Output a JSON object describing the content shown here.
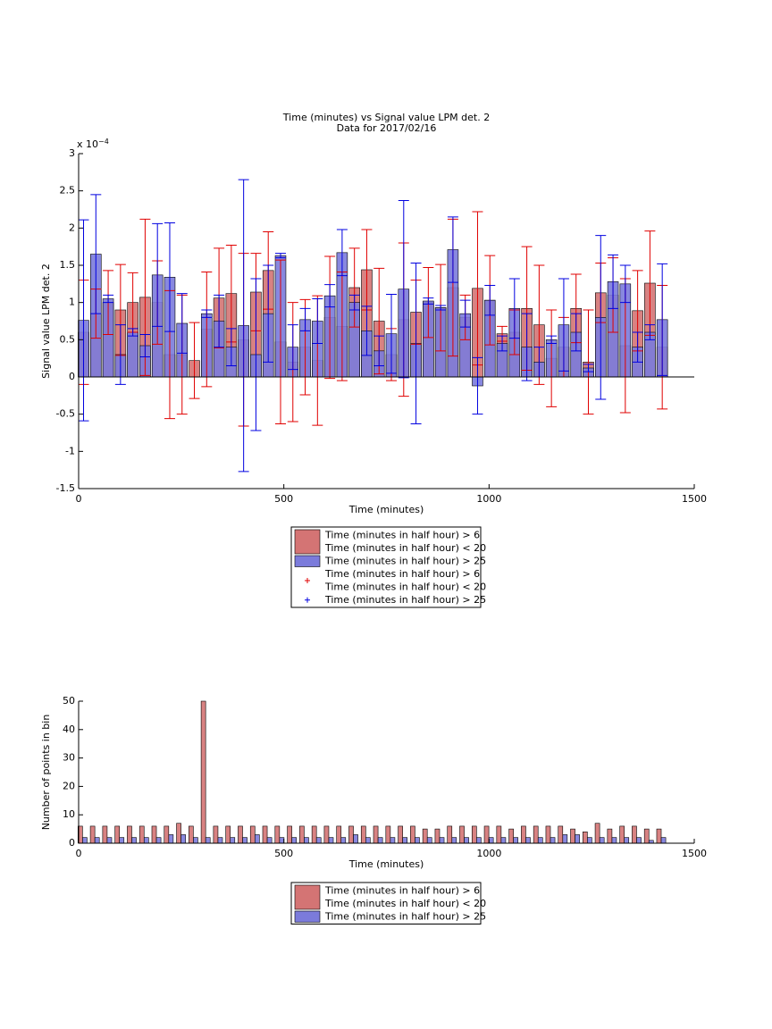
{
  "chart_data": [
    {
      "type": "bar",
      "title": [
        "Time (minutes) vs Signal value LPM det. 2",
        "Data for 2017/02/16"
      ],
      "xlabel": "Time (minutes)",
      "ylabel": "Signal value LPM det. 2",
      "y_offset_base": "x 10",
      "y_offset_exponent": "−4",
      "xlim": [
        0,
        1500
      ],
      "xticks": [
        0,
        500,
        1000,
        1500
      ],
      "ylim": [
        -1.5,
        3
      ],
      "yticks": [
        -1.5,
        -1,
        -0.5,
        0,
        0.5,
        1,
        1.5,
        2,
        2.5,
        3
      ],
      "zero_line": true,
      "errorbar_legend": true,
      "bar_width": 26,
      "series": [
        {
          "name": [
            "Time (minutes in half hour) > 6",
            "Time (minutes in half hour) < 20"
          ],
          "color": "#d47474",
          "error_color": "#e00000",
          "x": [
            12,
            42,
            72,
            102,
            132,
            162,
            192,
            222,
            252,
            282,
            312,
            342,
            372,
            402,
            432,
            462,
            492,
            522,
            552,
            582,
            612,
            642,
            672,
            702,
            732,
            762,
            792,
            822,
            852,
            882,
            912,
            942,
            972,
            1002,
            1032,
            1062,
            1092,
            1122,
            1152,
            1182,
            1212,
            1242,
            1272,
            1302,
            1332,
            1362,
            1392,
            1422
          ],
          "values": [
            0.6,
            0.85,
            1.0,
            0.9,
            1.0,
            1.07,
            1.0,
            0.3,
            0.3,
            0.22,
            0.64,
            1.06,
            1.12,
            0.5,
            1.14,
            1.43,
            0.47,
            0.2,
            0.4,
            0.22,
            0.8,
            0.68,
            1.2,
            1.44,
            0.75,
            0.3,
            0.77,
            0.87,
            1.0,
            0.93,
            1.2,
            0.8,
            1.19,
            1.03,
            0.58,
            0.6,
            0.92,
            0.7,
            0.25,
            0.4,
            0.92,
            0.2,
            1.13,
            1.1,
            0.42,
            0.89,
            1.26,
            0.4
          ],
          "errors": [
            0.7,
            0.33,
            0.43,
            0.61,
            0.4,
            1.05,
            0.56,
            0.86,
            0.8,
            0.51,
            0.77,
            0.67,
            0.65,
            1.16,
            0.52,
            0.52,
            1.1,
            0.8,
            0.64,
            0.87,
            0.82,
            0.73,
            0.53,
            0.54,
            0.71,
            0.35,
            1.03,
            0.43,
            0.47,
            0.58,
            0.92,
            0.3,
            1.03,
            0.6,
            0.1,
            0.3,
            0.83,
            0.8,
            0.65,
            0.4,
            0.46,
            0.7,
            0.4,
            0.5,
            0.9,
            0.54,
            0.7,
            0.83
          ]
        },
        {
          "name": [
            "Time (minutes in half hour) > 25"
          ],
          "color": "#7b7bdb",
          "error_color": "#0000e0",
          "x": [
            12,
            42,
            72,
            102,
            132,
            162,
            192,
            222,
            252,
            282,
            312,
            342,
            372,
            402,
            432,
            462,
            492,
            522,
            552,
            582,
            612,
            642,
            672,
            702,
            732,
            762,
            792,
            822,
            852,
            882,
            912,
            942,
            972,
            1002,
            1032,
            1062,
            1092,
            1122,
            1152,
            1182,
            1212,
            1242,
            1272,
            1302,
            1332,
            1362,
            1392,
            1422
          ],
          "values": [
            0.76,
            1.65,
            1.05,
            0.3,
            0.6,
            0.42,
            1.37,
            1.34,
            0.72,
            null,
            0.85,
            0.75,
            0.4,
            0.69,
            0.3,
            0.85,
            1.63,
            0.4,
            0.77,
            0.75,
            1.09,
            1.67,
            1.0,
            0.62,
            0.35,
            0.58,
            1.18,
            0.45,
            1.02,
            0.93,
            1.71,
            0.85,
            -0.12,
            1.03,
            0.45,
            0.92,
            0.4,
            0.2,
            0.5,
            0.7,
            0.6,
            0.12,
            0.8,
            1.28,
            1.25,
            0.4,
            0.6,
            0.77
          ],
          "errors": [
            1.35,
            0.8,
            0.05,
            0.4,
            0.05,
            0.15,
            0.69,
            0.73,
            0.4,
            null,
            0.05,
            0.35,
            0.25,
            1.96,
            1.02,
            0.65,
            0.03,
            0.3,
            0.15,
            0.3,
            0.15,
            0.31,
            0.1,
            0.33,
            0.2,
            0.53,
            1.19,
            1.08,
            0.04,
            0.03,
            0.44,
            0.18,
            0.38,
            0.2,
            0.1,
            0.4,
            0.45,
            0.2,
            0.05,
            0.62,
            0.25,
            0.05,
            1.1,
            0.36,
            0.25,
            0.2,
            0.1,
            0.75
          ]
        }
      ]
    },
    {
      "type": "bar",
      "xlabel": "Time (minutes)",
      "ylabel": "Number of points in bin",
      "xlim": [
        0,
        1500
      ],
      "xticks": [
        0,
        500,
        1000,
        1500
      ],
      "ylim": [
        0,
        50
      ],
      "yticks": [
        0,
        10,
        20,
        30,
        40,
        50
      ],
      "bar_width": 11,
      "series": [
        {
          "name": [
            "Time (minutes in half hour) > 6",
            "Time (minutes in half hour) < 20"
          ],
          "color": "#d47474",
          "x": [
            4,
            34,
            64,
            94,
            124,
            154,
            184,
            214,
            244,
            274,
            304,
            334,
            364,
            394,
            424,
            454,
            484,
            514,
            544,
            574,
            604,
            634,
            664,
            694,
            724,
            754,
            784,
            814,
            844,
            874,
            904,
            934,
            964,
            994,
            1024,
            1054,
            1084,
            1114,
            1144,
            1174,
            1204,
            1234,
            1264,
            1294,
            1324,
            1354,
            1384,
            1414
          ],
          "values": [
            6,
            6,
            6,
            6,
            6,
            6,
            6,
            6,
            7,
            6,
            50,
            6,
            6,
            6,
            6,
            6,
            6,
            6,
            6,
            6,
            6,
            6,
            6,
            6,
            6,
            6,
            6,
            6,
            5,
            5,
            6,
            6,
            6,
            6,
            6,
            5,
            6,
            6,
            6,
            6,
            5,
            4,
            7,
            5,
            6,
            6,
            5,
            5
          ]
        },
        {
          "name": [
            "Time (minutes in half hour) > 25"
          ],
          "color": "#7b7bdb",
          "x": [
            15,
            45,
            75,
            105,
            135,
            165,
            195,
            225,
            255,
            285,
            315,
            345,
            375,
            405,
            435,
            465,
            495,
            525,
            555,
            585,
            615,
            645,
            675,
            705,
            735,
            765,
            795,
            825,
            855,
            885,
            915,
            945,
            975,
            1005,
            1035,
            1065,
            1095,
            1125,
            1155,
            1185,
            1215,
            1245,
            1275,
            1305,
            1335,
            1365,
            1395,
            1425
          ],
          "values": [
            2,
            2,
            2,
            2,
            2,
            2,
            2,
            3,
            3,
            2,
            2,
            2,
            2,
            2,
            3,
            2,
            2,
            2,
            2,
            2,
            2,
            2,
            3,
            2,
            2,
            2,
            2,
            2,
            2,
            2,
            2,
            2,
            2,
            2,
            2,
            2,
            2,
            2,
            2,
            3,
            3,
            2,
            2,
            2,
            2,
            2,
            1,
            2
          ]
        }
      ]
    }
  ]
}
